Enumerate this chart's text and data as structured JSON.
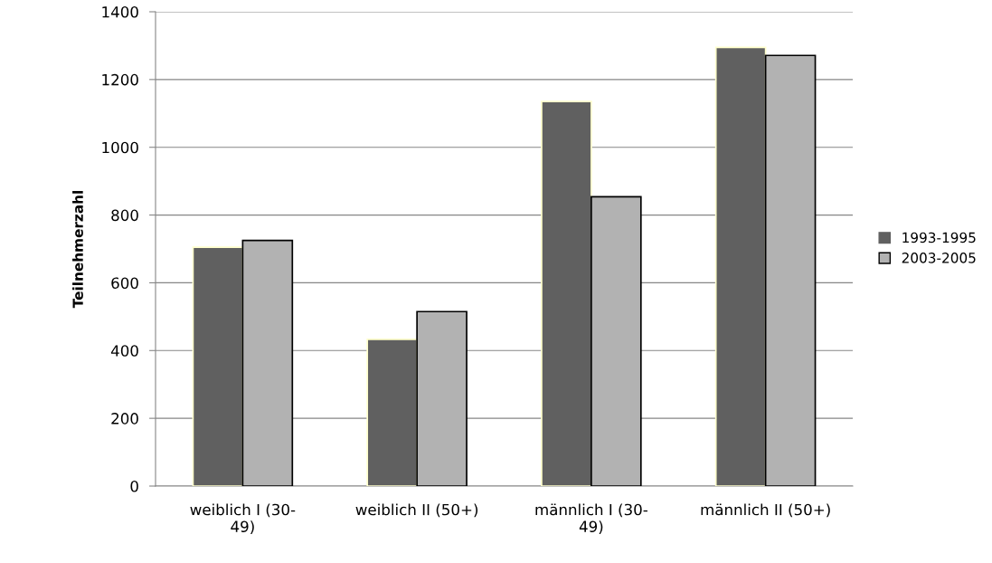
{
  "chart_data": {
    "type": "bar",
    "ylabel": "Teilnehmerzahl",
    "categories": [
      "weiblich I (30-\n49)",
      "weiblich II (50+)",
      "männlich I (30-\n49)",
      "männlich II (50+)"
    ],
    "series": [
      {
        "name": "1993-1995",
        "color": "#606060",
        "values": [
          705,
          433,
          1135,
          1295
        ]
      },
      {
        "name": "2003-2005",
        "color": "#b2b2b2",
        "values": [
          725,
          515,
          854,
          1271
        ]
      }
    ],
    "ylim": [
      0,
      1400
    ],
    "yticks": [
      0,
      200,
      400,
      600,
      800,
      1000,
      1200,
      1400
    ],
    "grid": "y",
    "legend": "right"
  }
}
